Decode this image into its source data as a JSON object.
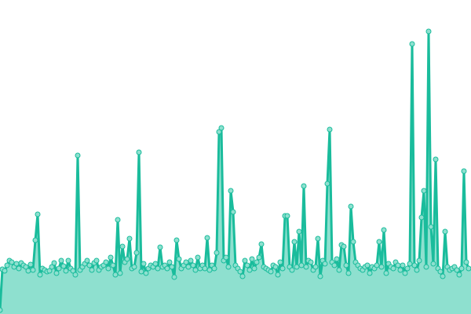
{
  "chart_data": {
    "type": "area",
    "title": "",
    "xlabel": "",
    "ylabel": "",
    "grid": false,
    "ylim": [
      0,
      400
    ],
    "colors": {
      "line": "#1abc9c",
      "fill": "#8ee0cf",
      "marker_fill": "#8ee0cf"
    },
    "values": [
      5,
      57,
      55,
      62,
      68,
      66,
      60,
      64,
      58,
      65,
      62,
      60,
      55,
      63,
      56,
      94,
      127,
      50,
      58,
      56,
      54,
      55,
      60,
      65,
      52,
      58,
      68,
      61,
      55,
      68,
      58,
      55,
      50,
      202,
      56,
      60,
      64,
      68,
      62,
      56,
      65,
      68,
      56,
      60,
      62,
      66,
      58,
      72,
      62,
      50,
      120,
      52,
      86,
      66,
      70,
      96,
      58,
      60,
      78,
      206,
      54,
      64,
      52,
      58,
      62,
      60,
      64,
      58,
      85,
      60,
      62,
      58,
      66,
      60,
      47,
      94,
      70,
      58,
      62,
      66,
      60,
      68,
      62,
      56,
      72,
      58,
      62,
      58,
      97,
      56,
      62,
      58,
      78,
      232,
      237,
      68,
      72,
      60,
      157,
      130,
      62,
      58,
      54,
      48,
      68,
      62,
      56,
      70,
      58,
      66,
      72,
      89,
      60,
      58,
      56,
      54,
      62,
      60,
      50,
      66,
      58,
      125,
      125,
      60,
      56,
      92,
      60,
      105,
      62,
      163,
      60,
      68,
      66,
      56,
      60,
      96,
      48,
      68,
      64,
      166,
      235,
      66,
      62,
      70,
      56,
      88,
      86,
      62,
      52,
      137,
      92,
      66,
      62,
      58,
      56,
      60,
      62,
      52,
      60,
      58,
      62,
      92,
      60,
      107,
      52,
      64,
      60,
      58,
      66,
      62,
      56,
      62,
      52,
      58,
      64,
      344,
      62,
      56,
      68,
      123,
      157,
      60,
      360,
      111,
      64,
      197,
      58,
      54,
      48,
      105,
      60,
      56,
      58,
      60,
      56,
      50,
      58,
      182,
      66,
      58
    ]
  }
}
